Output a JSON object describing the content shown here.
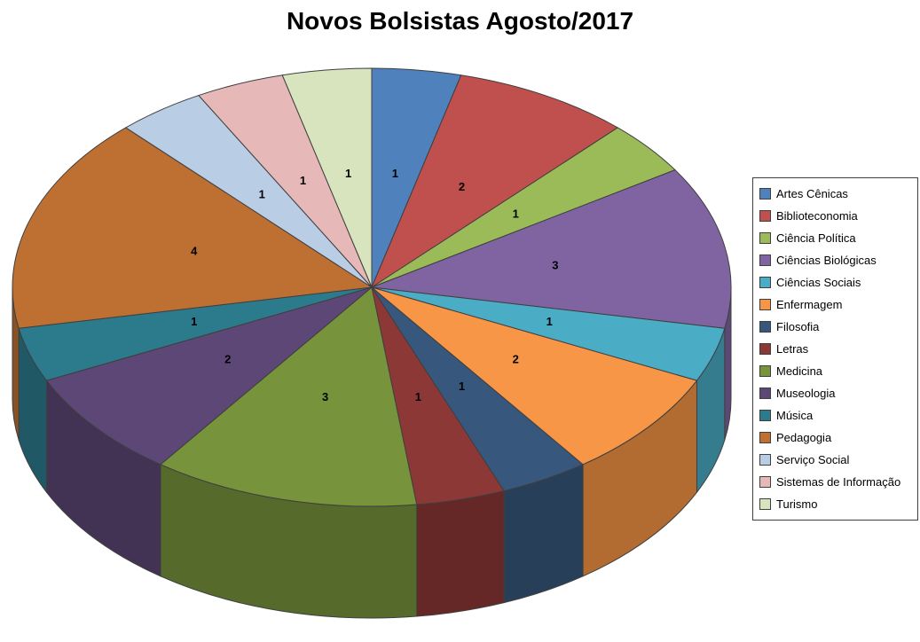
{
  "page": {
    "background_color": "#FFFFFF",
    "outline_color": "#3F3F3F"
  },
  "chart_data": {
    "type": "pie",
    "style": "3d",
    "title": "Novos Bolsistas Agosto/2017",
    "legend_position": "right",
    "direction": "clockwise",
    "start_angle_deg": 0,
    "total": 25,
    "categories": [
      "Artes Cênicas",
      "Biblioteconomia",
      "Ciência Política",
      "Ciências Biológicas",
      "Ciências Sociais",
      "Enfermagem",
      "Filosofia",
      "Letras",
      "Medicina",
      "Museologia",
      "Música",
      "Pedagogia",
      "Serviço Social",
      "Sistemas de Informação",
      "Turismo"
    ],
    "values": [
      1,
      2,
      1,
      3,
      1,
      2,
      1,
      1,
      3,
      2,
      1,
      4,
      1,
      1,
      1
    ],
    "data_labels": [
      "1",
      "2",
      "1",
      "3",
      "1",
      "2",
      "1",
      "1",
      "3",
      "2",
      "1",
      "4",
      "1",
      "1",
      "1"
    ],
    "colors": [
      "#4F81BD",
      "#C0504D",
      "#9BBB59",
      "#8064A2",
      "#4BACC6",
      "#F79646",
      "#38577D",
      "#8C3836",
      "#77933C",
      "#5C4776",
      "#2C7B8C",
      "#BE7032",
      "#B9CDE5",
      "#E6B9B8",
      "#D7E4BD"
    ]
  }
}
